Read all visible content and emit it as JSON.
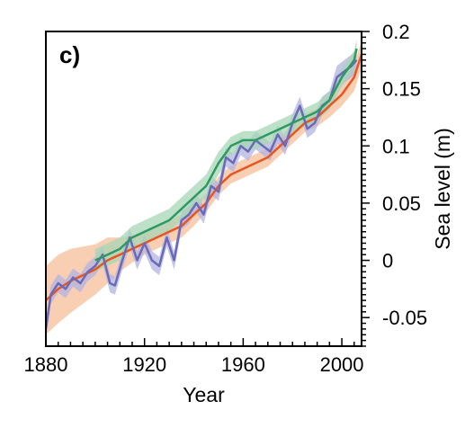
{
  "chart_data": {
    "type": "line",
    "panel_label": "c)",
    "title": "",
    "xlabel": "Year",
    "ylabel": "Sea level (m)",
    "xlim": [
      1880,
      2008
    ],
    "ylim": [
      -0.075,
      0.2
    ],
    "xticks": [
      1880,
      1920,
      1960,
      2000
    ],
    "xtick_labels": [
      "1880",
      "1920",
      "1960",
      "2000"
    ],
    "yticks": [
      -0.05,
      0,
      0.05,
      0.1,
      0.15,
      0.2
    ],
    "ytick_labels": [
      "-0.05",
      "0",
      "0.05",
      "0.1",
      "0.15",
      "0.2"
    ],
    "y_axis_side": "right",
    "grid": false,
    "legend": "none",
    "colors": {
      "orange": "#e8551e",
      "orange_band": "#f7bf9b",
      "blue": "#6a6ab8",
      "blue_band": "#b3b3e2",
      "green": "#2e9a62",
      "green_band": "#a7d6b6"
    },
    "series": [
      {
        "color": "orange",
        "x": [
          1880,
          1885,
          1890,
          1895,
          1900,
          1905,
          1910,
          1915,
          1920,
          1925,
          1930,
          1935,
          1940,
          1945,
          1950,
          1955,
          1960,
          1965,
          1970,
          1975,
          1980,
          1985,
          1990,
          1995,
          2000,
          2005,
          2008
        ],
        "y": [
          -0.035,
          -0.025,
          -0.018,
          -0.013,
          -0.008,
          0.0,
          0.005,
          0.01,
          0.015,
          0.02,
          0.025,
          0.03,
          0.04,
          0.05,
          0.065,
          0.075,
          0.08,
          0.085,
          0.09,
          0.1,
          0.11,
          0.12,
          0.125,
          0.135,
          0.145,
          0.16,
          0.18
        ],
        "band": [
          0.03,
          0.03,
          0.028,
          0.025,
          0.022,
          0.02,
          0.015,
          0.012,
          0.01,
          0.01,
          0.01,
          0.01,
          0.01,
          0.008,
          0.008,
          0.008,
          0.008,
          0.008,
          0.008,
          0.008,
          0.008,
          0.008,
          0.008,
          0.01,
          0.01,
          0.012,
          0.012
        ]
      },
      {
        "color": "blue",
        "x": [
          1880,
          1882,
          1885,
          1888,
          1891,
          1894,
          1897,
          1900,
          1903,
          1906,
          1908,
          1911,
          1914,
          1917,
          1920,
          1923,
          1926,
          1929,
          1932,
          1935,
          1938,
          1941,
          1944,
          1947,
          1950,
          1953,
          1956,
          1959,
          1962,
          1965,
          1968,
          1971,
          1974,
          1977,
          1980,
          1983,
          1986,
          1989,
          1992,
          1995,
          1998,
          2001,
          2004,
          2006
        ],
        "y": [
          -0.06,
          -0.03,
          -0.02,
          -0.025,
          -0.015,
          -0.02,
          -0.01,
          -0.005,
          0.005,
          -0.02,
          -0.022,
          0.0,
          0.02,
          0.0,
          0.015,
          0.0,
          -0.005,
          0.02,
          0.0,
          0.035,
          0.04,
          0.05,
          0.04,
          0.065,
          0.06,
          0.09,
          0.085,
          0.1,
          0.095,
          0.105,
          0.1,
          0.095,
          0.11,
          0.1,
          0.12,
          0.135,
          0.115,
          0.12,
          0.135,
          0.14,
          0.16,
          0.165,
          0.17,
          0.175
        ],
        "band": [
          0.008,
          0.008,
          0.008,
          0.008,
          0.008,
          0.008,
          0.008,
          0.008,
          0.008,
          0.008,
          0.008,
          0.008,
          0.008,
          0.008,
          0.008,
          0.008,
          0.008,
          0.008,
          0.008,
          0.008,
          0.008,
          0.008,
          0.008,
          0.008,
          0.008,
          0.008,
          0.008,
          0.008,
          0.008,
          0.008,
          0.008,
          0.008,
          0.008,
          0.008,
          0.008,
          0.008,
          0.008,
          0.008,
          0.008,
          0.008,
          0.01,
          0.01,
          0.01,
          0.01
        ]
      },
      {
        "color": "green",
        "x": [
          1900,
          1905,
          1910,
          1915,
          1920,
          1925,
          1930,
          1935,
          1940,
          1945,
          1950,
          1955,
          1960,
          1965,
          1970,
          1975,
          1980,
          1985,
          1990,
          1995,
          2000,
          2005,
          2006
        ],
        "y": [
          0.0,
          0.005,
          0.01,
          0.02,
          0.025,
          0.03,
          0.035,
          0.045,
          0.055,
          0.065,
          0.085,
          0.1,
          0.105,
          0.105,
          0.11,
          0.115,
          0.12,
          0.125,
          0.13,
          0.14,
          0.16,
          0.175,
          0.185
        ],
        "band": [
          0.01,
          0.01,
          0.01,
          0.01,
          0.01,
          0.01,
          0.01,
          0.01,
          0.01,
          0.01,
          0.01,
          0.008,
          0.008,
          0.008,
          0.008,
          0.008,
          0.008,
          0.008,
          0.008,
          0.008,
          0.008,
          0.008,
          0.008
        ]
      }
    ]
  }
}
